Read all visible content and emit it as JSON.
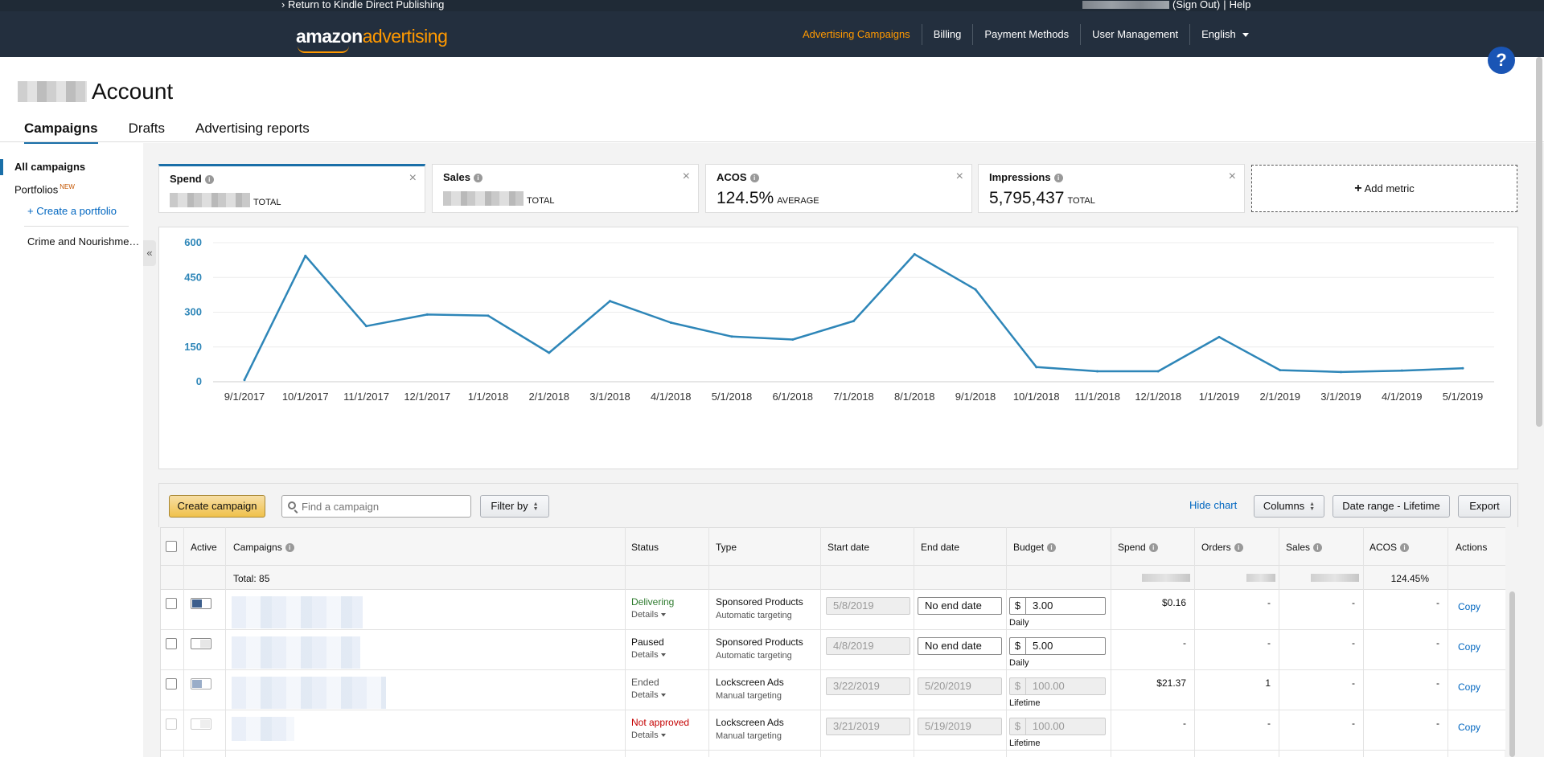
{
  "topbar": {
    "kdp_link": "Return to Kindle Direct Publishing",
    "sign_out": "(Sign Out)",
    "help": "Help"
  },
  "header": {
    "logo_a": "amazon",
    "logo_b": "advertising",
    "nav": [
      "Advertising Campaigns",
      "Billing",
      "Payment Methods",
      "User Management",
      "English"
    ]
  },
  "account_title": "Account",
  "tabs": [
    "Campaigns",
    "Drafts",
    "Advertising reports"
  ],
  "sidebar": {
    "all_campaigns": "All campaigns",
    "portfolios": "Portfolios",
    "new_badge": "NEW",
    "create_portfolio": "+ Create a portfolio",
    "portfolio_item": "Crime and Nourishme…",
    "collapse": "«"
  },
  "metrics": [
    {
      "name": "Spend",
      "value": "",
      "unit": "TOTAL"
    },
    {
      "name": "Sales",
      "value": "",
      "unit": "TOTAL"
    },
    {
      "name": "ACOS",
      "value": "124.5%",
      "unit": "AVERAGE"
    },
    {
      "name": "Impressions",
      "value": "5,795,437",
      "unit": "TOTAL"
    }
  ],
  "add_metric": "Add metric",
  "chart_data": {
    "type": "line",
    "x": [
      "9/1/2017",
      "10/1/2017",
      "11/1/2017",
      "12/1/2017",
      "1/1/2018",
      "2/1/2018",
      "3/1/2018",
      "4/1/2018",
      "5/1/2018",
      "6/1/2018",
      "7/1/2018",
      "8/1/2018",
      "9/1/2018",
      "10/1/2018",
      "11/1/2018",
      "12/1/2018",
      "1/1/2019",
      "2/1/2019",
      "3/1/2019",
      "4/1/2019",
      "5/1/2019"
    ],
    "values": [
      8,
      543,
      240,
      290,
      285,
      125,
      348,
      255,
      195,
      182,
      262,
      550,
      398,
      63,
      45,
      45,
      193,
      50,
      42,
      48,
      58
    ],
    "yticks": [
      0,
      150,
      300,
      450,
      600
    ],
    "ylim": [
      0,
      600
    ],
    "color": "#2e86b8",
    "grid": true
  },
  "toolbar": {
    "create_campaign": "Create campaign",
    "search_placeholder": "Find a campaign",
    "filter_by": "Filter by",
    "hide_chart": "Hide chart",
    "columns": "Columns",
    "date_range": "Date range - Lifetime",
    "export": "Export"
  },
  "table": {
    "headers": [
      "Active",
      "Campaigns",
      "Status",
      "Type",
      "Start date",
      "End date",
      "Budget",
      "Spend",
      "Orders",
      "Sales",
      "ACOS",
      "Actions"
    ],
    "total_label": "Total: 85",
    "total_acos": "124.45%",
    "rows": [
      {
        "status": "Delivering",
        "details": "Details",
        "type": "Sponsored Products",
        "targeting": "Automatic targeting",
        "start": "5/8/2019",
        "end": "No end date",
        "budget": "3.00",
        "budget_type": "Daily",
        "spend": "$0.16",
        "orders": "-",
        "sales": "-",
        "acos": "-",
        "action": "Copy"
      },
      {
        "status": "Paused",
        "details": "Details",
        "type": "Sponsored Products",
        "targeting": "Automatic targeting",
        "start": "4/8/2019",
        "end": "No end date",
        "budget": "5.00",
        "budget_type": "Daily",
        "spend": "-",
        "orders": "-",
        "sales": "-",
        "acos": "-",
        "action": "Copy"
      },
      {
        "status": "Ended",
        "details": "Details",
        "type": "Lockscreen Ads",
        "targeting": "Manual targeting",
        "start": "3/22/2019",
        "end": "5/20/2019",
        "budget": "100.00",
        "budget_type": "Lifetime",
        "spend": "$21.37",
        "orders": "1",
        "sales": "-",
        "acos": "-",
        "action": "Copy"
      },
      {
        "status": "Not approved",
        "details": "Details",
        "type": "Lockscreen Ads",
        "targeting": "Manual targeting",
        "start": "3/21/2019",
        "end": "5/19/2019",
        "budget": "100.00",
        "budget_type": "Lifetime",
        "spend": "-",
        "orders": "-",
        "sales": "-",
        "acos": "-",
        "action": "Copy"
      }
    ],
    "currency": "$"
  }
}
